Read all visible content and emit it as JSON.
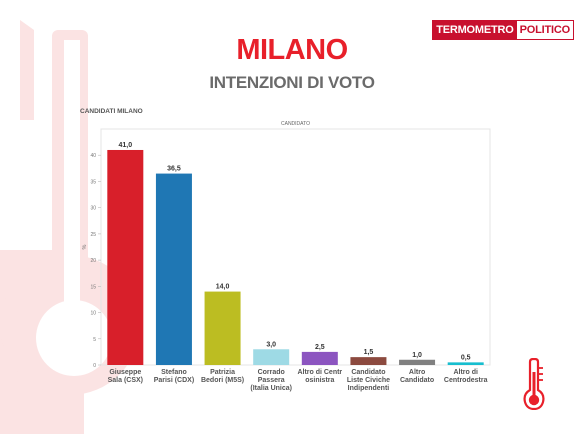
{
  "header": {
    "brand_part1": "TERMOMETRO",
    "brand_part2": "POLITICO",
    "title": "MILANO",
    "subtitle": "INTENZIONI DI VOTO"
  },
  "chart_heading": "CANDIDATI MILANO",
  "colors": {
    "brand_red": "#e8202a",
    "watermark": "#fbe3e3",
    "subtitle_grey": "#6b6b6b"
  },
  "icons": [
    "thermometer-icon"
  ],
  "chart_data": {
    "type": "bar",
    "title": "CANDIDATO",
    "ylabel": "%",
    "ylim": [
      0,
      45
    ],
    "yticks": [
      0,
      5,
      10,
      15,
      20,
      25,
      30,
      35,
      40
    ],
    "grid": false,
    "categories": [
      [
        "Giuseppe",
        "Sala (CSX)"
      ],
      [
        "Stefano",
        "Parisi (CDX)"
      ],
      [
        "Patrizia",
        "Bedori (M5S)"
      ],
      [
        "Corrado",
        "Passera",
        "(Italia Unica)"
      ],
      [
        "Altro di Centr",
        "osinistra"
      ],
      [
        "Candidato",
        "Liste Civiche",
        "Indipendenti"
      ],
      [
        "Altro",
        "Candidato"
      ],
      [
        "Altro di",
        "Centrodestra"
      ]
    ],
    "values": [
      41.0,
      36.5,
      14.0,
      3.0,
      2.5,
      1.5,
      1.0,
      0.5
    ],
    "value_labels": [
      "41,0",
      "36,5",
      "14,0",
      "3,0",
      "2,5",
      "1,5",
      "1,0",
      "0,5"
    ],
    "bar_colors": [
      "#d81f2a",
      "#1f77b4",
      "#bcbd22",
      "#9edae5",
      "#8c55c0",
      "#8c4a3f",
      "#808080",
      "#17becf"
    ]
  }
}
